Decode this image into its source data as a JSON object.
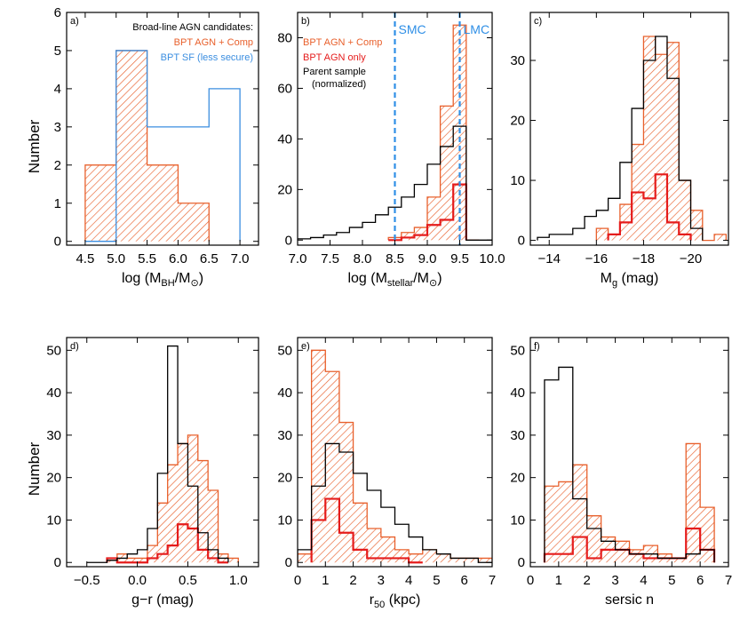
{
  "colors": {
    "orange": "#e8602c",
    "blue": "#3b8ee0",
    "red": "#e51c1c",
    "black": "#000000",
    "dashed_blue": "#2f8fe6"
  },
  "figure": {
    "ylabel_top": "Number",
    "ylabel_bottom": "Number"
  },
  "chart_data": [
    {
      "panel": "a)",
      "type": "bar",
      "xlabel": "log (M_BH/M_⊙)",
      "xlabel_parts": {
        "main": "log (M",
        "sub": "BH",
        "mid": "/M",
        "sub2": "⊙",
        "end": ")"
      },
      "ylabel": "Number",
      "xlim": [
        4.2,
        7.3
      ],
      "ylim": [
        -0.1,
        6
      ],
      "xticks": [
        4.5,
        5.0,
        5.5,
        6.0,
        6.5,
        7.0
      ],
      "xtick_labels": [
        "4.5",
        "5.0",
        "5.5",
        "6.0",
        "6.5",
        "7.0"
      ],
      "yticks": [
        0,
        1,
        2,
        3,
        4,
        5,
        6
      ],
      "ytick_labels": [
        "0",
        "1",
        "2",
        "3",
        "4",
        "5",
        "6"
      ],
      "legend_title": "Broad-line AGN candidates:",
      "legend": [
        "BPT AGN + Comp",
        "BPT SF (less secure)"
      ],
      "series": [
        {
          "name": "BPT AGN + Comp",
          "style": "hatch",
          "edges": [
            4.5,
            5.0,
            5.5,
            6.0,
            6.5
          ],
          "values": [
            2,
            5,
            2,
            1
          ]
        },
        {
          "name": "BPT SF (less secure)",
          "style": "line-blue",
          "edges": [
            4.5,
            5.0,
            5.5,
            6.0,
            6.5,
            7.0
          ],
          "values": [
            0,
            5,
            3,
            3,
            4
          ]
        }
      ]
    },
    {
      "panel": "b)",
      "type": "bar",
      "xlabel": "log (M_stellar/M_⊙)",
      "xlabel_parts": {
        "main": "log (M",
        "sub": "stellar",
        "mid": "/M",
        "sub2": "⊙",
        "end": ")"
      },
      "xlim": [
        7.0,
        10.0
      ],
      "ylim": [
        -2,
        90
      ],
      "xticks": [
        7.0,
        7.5,
        8.0,
        8.5,
        9.0,
        9.5,
        10.0
      ],
      "xtick_labels": [
        "7.0",
        "7.5",
        "8.0",
        "8.5",
        "9.0",
        "9.5",
        "10.0"
      ],
      "yticks": [
        0,
        20,
        40,
        60,
        80
      ],
      "ytick_labels": [
        "0",
        "20",
        "40",
        "60",
        "80"
      ],
      "legend": [
        "BPT AGN + Comp",
        "BPT AGN only",
        "Parent sample",
        "(normalized)"
      ],
      "ref_lines": [
        {
          "x": 8.5,
          "label": "SMC"
        },
        {
          "x": 9.5,
          "label": "LMC"
        }
      ],
      "series": [
        {
          "name": "BPT AGN + Comp",
          "style": "hatch",
          "edges": [
            8.4,
            8.6,
            8.8,
            9.0,
            9.2,
            9.4,
            9.6,
            9.8
          ],
          "values": [
            1,
            3,
            5,
            17,
            53,
            85,
            0
          ]
        },
        {
          "name": "BPT AGN only",
          "style": "line-red",
          "edges": [
            8.4,
            8.6,
            8.8,
            9.0,
            9.2,
            9.4,
            9.6
          ],
          "values": [
            0,
            1,
            2,
            6,
            8,
            22
          ]
        },
        {
          "name": "Parent sample (normalized)",
          "style": "line-black",
          "edges": [
            7.0,
            7.2,
            7.4,
            7.6,
            7.8,
            8.0,
            8.2,
            8.4,
            8.6,
            8.8,
            9.0,
            9.2,
            9.4,
            9.6,
            9.8,
            10.0
          ],
          "values": [
            0.5,
            1,
            2,
            3,
            5,
            7,
            10,
            13,
            17,
            22,
            30,
            37,
            45,
            0,
            0
          ]
        }
      ]
    },
    {
      "panel": "c)",
      "type": "bar",
      "xlabel": "M_g (mag)",
      "xlabel_parts": {
        "main": "M",
        "sub": "g",
        "end": " (mag)"
      },
      "xlim": [
        -13.2,
        -21.6
      ],
      "ylim": [
        -0.8,
        38
      ],
      "xticks": [
        -14,
        -16,
        -18,
        -20
      ],
      "xtick_labels": [
        "−14",
        "−16",
        "−18",
        "−20"
      ],
      "yticks": [
        0,
        10,
        20,
        30
      ],
      "ytick_labels": [
        "0",
        "10",
        "20",
        "30"
      ],
      "series": [
        {
          "name": "BPT AGN + Comp",
          "style": "hatch",
          "edges": [
            -16.0,
            -16.5,
            -17.0,
            -17.5,
            -18.0,
            -18.5,
            -19.0,
            -19.5,
            -20.0,
            -20.5,
            -21.0,
            -21.5
          ],
          "values": [
            2,
            1,
            6,
            16,
            34,
            31,
            33,
            10,
            5,
            0,
            1
          ]
        },
        {
          "name": "BPT AGN only",
          "style": "line-red",
          "edges": [
            -16.5,
            -17.0,
            -17.5,
            -18.0,
            -18.5,
            -19.0,
            -19.5,
            -20.0
          ],
          "values": [
            1,
            3,
            8,
            7,
            11,
            3,
            1
          ]
        },
        {
          "name": "Parent sample (normalized)",
          "style": "line-black",
          "edges": [
            -13.5,
            -14.0,
            -14.5,
            -15.0,
            -15.5,
            -16.0,
            -16.5,
            -17.0,
            -17.5,
            -18.0,
            -18.5,
            -19.0,
            -19.5,
            -20.0,
            -20.5
          ],
          "values": [
            0.5,
            1,
            1,
            2,
            4,
            5,
            7,
            13,
            22,
            30,
            34,
            27,
            10,
            2
          ]
        }
      ]
    },
    {
      "panel": "d)",
      "type": "bar",
      "xlabel": "g−r (mag)",
      "xlabel_parts": {
        "main": "g−r (mag)"
      },
      "ylabel": "Number",
      "xlim": [
        -0.7,
        1.2
      ],
      "ylim": [
        -1,
        53
      ],
      "xticks": [
        -0.5,
        0.0,
        0.5,
        1.0
      ],
      "xtick_labels": [
        "−0.5",
        "0.0",
        "0.5",
        "1.0"
      ],
      "yticks": [
        0,
        10,
        20,
        30,
        40,
        50
      ],
      "ytick_labels": [
        "0",
        "10",
        "20",
        "30",
        "40",
        "50"
      ],
      "series": [
        {
          "name": "BPT AGN + Comp",
          "style": "hatch",
          "edges": [
            -0.3,
            -0.2,
            -0.1,
            0.0,
            0.1,
            0.2,
            0.3,
            0.4,
            0.5,
            0.6,
            0.7,
            0.8,
            0.9,
            1.0
          ],
          "values": [
            0.5,
            2,
            1,
            1,
            4,
            14,
            23,
            28,
            30,
            24,
            17,
            2,
            1
          ]
        },
        {
          "name": "BPT AGN only",
          "style": "line-red",
          "edges": [
            -0.3,
            -0.2,
            -0.1,
            0.0,
            0.1,
            0.2,
            0.3,
            0.4,
            0.5,
            0.6,
            0.7,
            0.8,
            0.9
          ],
          "values": [
            1,
            0,
            0,
            0,
            1,
            2,
            4,
            9,
            8,
            3,
            1,
            0
          ]
        },
        {
          "name": "Parent sample (normalized)",
          "style": "line-black",
          "edges": [
            -0.5,
            -0.4,
            -0.3,
            -0.2,
            -0.1,
            0.0,
            0.1,
            0.2,
            0.3,
            0.4,
            0.5,
            0.6,
            0.7,
            0.8,
            0.9
          ],
          "values": [
            0,
            0,
            0.5,
            1,
            2,
            3,
            8,
            21,
            51,
            28,
            18,
            7,
            3,
            1
          ]
        }
      ]
    },
    {
      "panel": "e)",
      "type": "bar",
      "xlabel": "r_50 (kpc)",
      "xlabel_parts": {
        "main": "r",
        "sub": "50",
        "end": " (kpc)"
      },
      "xlim": [
        0,
        7
      ],
      "ylim": [
        -1,
        53
      ],
      "xticks": [
        0,
        1,
        2,
        3,
        4,
        5,
        6,
        7
      ],
      "xtick_labels": [
        "0",
        "1",
        "2",
        "3",
        "4",
        "5",
        "6",
        "7"
      ],
      "yticks": [
        0,
        10,
        20,
        30,
        40,
        50
      ],
      "ytick_labels": [
        "0",
        "10",
        "20",
        "30",
        "40",
        "50"
      ],
      "series": [
        {
          "name": "BPT AGN + Comp",
          "style": "hatch",
          "edges": [
            0.0,
            0.5,
            1.0,
            1.5,
            2.0,
            2.5,
            3.0,
            3.5,
            4.0,
            4.5,
            5.0,
            5.5,
            6.0,
            6.5,
            7.0
          ],
          "values": [
            2,
            50,
            45,
            33,
            14,
            8,
            6,
            3,
            2,
            3,
            2,
            1,
            1,
            1
          ]
        },
        {
          "name": "BPT AGN only",
          "style": "line-red",
          "edges": [
            0.5,
            1.0,
            1.5,
            2.0,
            2.5,
            3.0,
            3.5,
            4.0,
            4.5
          ],
          "values": [
            10,
            15,
            7,
            3,
            1,
            1,
            1,
            0
          ]
        },
        {
          "name": "Parent sample (normalized)",
          "style": "line-black",
          "edges": [
            0.0,
            0.5,
            1.0,
            1.5,
            2.0,
            2.5,
            3.0,
            3.5,
            4.0,
            4.5,
            5.0,
            5.5,
            6.0,
            6.5,
            7.0
          ],
          "values": [
            3,
            18,
            28,
            26,
            21,
            17,
            13,
            9,
            6,
            3,
            2,
            1,
            1,
            0
          ]
        }
      ]
    },
    {
      "panel": "f)",
      "type": "bar",
      "xlabel": "sersic n",
      "xlabel_parts": {
        "main": "sersic n"
      },
      "xlim": [
        0,
        7
      ],
      "ylim": [
        -1,
        53
      ],
      "xticks": [
        0,
        1,
        2,
        3,
        4,
        5,
        6,
        7
      ],
      "xtick_labels": [
        "0",
        "1",
        "2",
        "3",
        "4",
        "5",
        "6",
        "7"
      ],
      "yticks": [
        0,
        10,
        20,
        30,
        40,
        50
      ],
      "ytick_labels": [
        "0",
        "10",
        "20",
        "30",
        "40",
        "50"
      ],
      "series": [
        {
          "name": "BPT AGN + Comp",
          "style": "hatch",
          "edges": [
            0.5,
            1.0,
            1.5,
            2.0,
            2.5,
            3.0,
            3.5,
            4.0,
            4.5,
            5.0,
            5.5,
            6.0,
            6.5
          ],
          "values": [
            18,
            19,
            23,
            11,
            6,
            5,
            3,
            4,
            2,
            1,
            28,
            13
          ]
        },
        {
          "name": "BPT AGN only",
          "style": "line-red",
          "edges": [
            0.5,
            1.0,
            1.5,
            2.0,
            2.5,
            3.0,
            3.5,
            4.0,
            4.5,
            5.0,
            5.5,
            6.0,
            6.5
          ],
          "values": [
            2,
            2,
            6,
            1,
            3,
            3,
            2,
            1,
            1,
            1,
            8,
            3
          ]
        },
        {
          "name": "Parent sample (normalized)",
          "style": "line-black",
          "edges": [
            0.5,
            1.0,
            1.5,
            2.0,
            2.5,
            3.0,
            3.5,
            4.0,
            4.5,
            5.0,
            5.5,
            6.0,
            6.5
          ],
          "values": [
            43,
            46,
            15,
            8,
            5,
            3,
            2,
            2,
            1,
            1,
            2,
            3
          ]
        }
      ]
    }
  ]
}
